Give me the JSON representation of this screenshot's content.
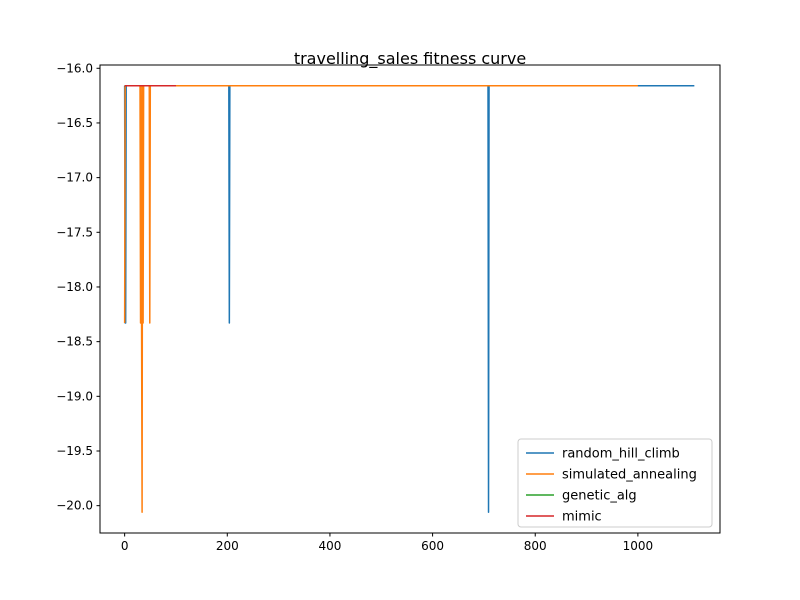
{
  "chart_data": {
    "type": "line",
    "title": "travelling_sales fitness curve",
    "xlabel": "",
    "ylabel": "",
    "xlim": [
      -48,
      1160
    ],
    "ylim": [
      -20.25,
      -15.97
    ],
    "x_ticks": [
      0,
      200,
      400,
      600,
      800,
      1000
    ],
    "x_tick_labels": [
      "0",
      "200",
      "400",
      "600",
      "800",
      "1000"
    ],
    "y_ticks": [
      -16.0,
      -16.5,
      -17.0,
      -17.5,
      -18.0,
      -18.5,
      -19.0,
      -19.5,
      -20.0
    ],
    "y_tick_labels": [
      "−16.0",
      "−16.5",
      "−17.0",
      "−17.5",
      "−18.0",
      "−18.5",
      "−19.0",
      "−19.5",
      "−20.0"
    ],
    "grid": false,
    "legend_position": "lower-right",
    "series": [
      {
        "name": "random_hill_climb",
        "color": "#1f77b4",
        "x": [
          0,
          1,
          2,
          3,
          4,
          203,
          204,
          205,
          708,
          709,
          710,
          1110
        ],
        "y": [
          -16.16,
          -18.33,
          -18.33,
          -16.16,
          -16.16,
          -16.16,
          -18.33,
          -16.16,
          -16.16,
          -20.06,
          -16.16,
          -16.16
        ]
      },
      {
        "name": "simulated_annealing",
        "color": "#ff7f0e",
        "x": [
          0,
          1,
          2,
          30,
          31,
          32,
          33,
          34,
          35,
          36,
          37,
          48,
          49,
          50,
          1000
        ],
        "y": [
          -18.33,
          -16.16,
          -16.16,
          -16.16,
          -18.33,
          -16.16,
          -18.33,
          -20.06,
          -16.16,
          -18.33,
          -16.16,
          -16.16,
          -18.33,
          -16.16,
          -16.16
        ]
      },
      {
        "name": "genetic_alg",
        "color": "#2ca02c",
        "x": [
          0,
          100
        ],
        "y": [
          -16.16,
          -16.16
        ]
      },
      {
        "name": "mimic",
        "color": "#d62728",
        "x": [
          0,
          100
        ],
        "y": [
          -16.16,
          -16.16
        ]
      }
    ]
  }
}
